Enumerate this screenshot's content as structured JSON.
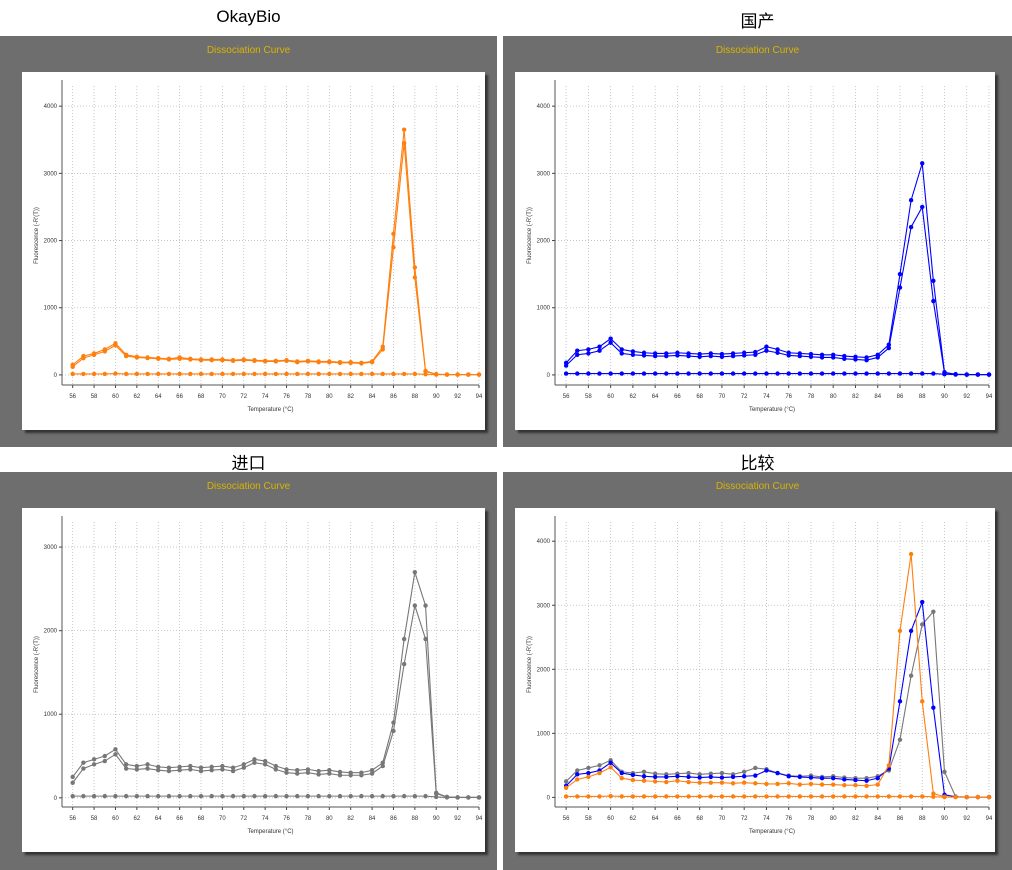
{
  "panel_titles": [
    "OkayBio",
    "国产",
    "进口",
    "比较"
  ],
  "chart_data": [
    {
      "type": "line",
      "title": "Dissociation Curve",
      "xlabel": "Temperature (°C)",
      "ylabel": "Fluorescence (-R'(T))",
      "xlim": [
        55,
        94
      ],
      "ylim": [
        -150,
        4300
      ],
      "xticks": [
        56,
        58,
        60,
        62,
        64,
        66,
        68,
        70,
        72,
        74,
        76,
        78,
        80,
        82,
        84,
        86,
        88,
        90,
        92,
        94
      ],
      "yticks": [
        0,
        1000,
        2000,
        3000,
        4000
      ],
      "grid": true,
      "x": [
        56,
        57,
        58,
        59,
        60,
        61,
        62,
        63,
        64,
        65,
        66,
        67,
        68,
        69,
        70,
        71,
        72,
        73,
        74,
        75,
        76,
        77,
        78,
        79,
        80,
        81,
        82,
        83,
        84,
        85,
        86,
        87,
        88,
        89,
        90,
        91,
        92,
        93,
        94
      ],
      "series": [
        {
          "color": "#ff7f0e",
          "values": [
            150,
            280,
            320,
            380,
            470,
            300,
            270,
            260,
            250,
            240,
            260,
            240,
            230,
            230,
            230,
            220,
            230,
            220,
            210,
            210,
            220,
            200,
            210,
            200,
            200,
            190,
            190,
            180,
            200,
            420,
            2100,
            3650,
            1600,
            60,
            10,
            5,
            5,
            5,
            5
          ]
        },
        {
          "color": "#ff7f0e",
          "values": [
            120,
            250,
            300,
            350,
            440,
            280,
            260,
            250,
            240,
            230,
            240,
            230,
            220,
            220,
            220,
            210,
            220,
            210,
            200,
            200,
            210,
            190,
            200,
            190,
            190,
            180,
            180,
            170,
            190,
            380,
            1900,
            3450,
            1450,
            50,
            10,
            5,
            5,
            5,
            5
          ]
        },
        {
          "color": "#ff7f0e",
          "values": [
            15,
            15,
            15,
            15,
            20,
            15,
            15,
            15,
            15,
            15,
            15,
            15,
            15,
            15,
            15,
            15,
            15,
            15,
            15,
            15,
            15,
            15,
            15,
            15,
            15,
            15,
            15,
            15,
            15,
            15,
            15,
            15,
            15,
            10,
            5,
            5,
            5,
            5,
            5
          ]
        }
      ]
    },
    {
      "type": "line",
      "title": "Dissociation Curve",
      "xlabel": "Temperature (°C)",
      "ylabel": "Fluorescence (-R'(T))",
      "xlim": [
        55,
        94
      ],
      "ylim": [
        -150,
        4300
      ],
      "xticks": [
        56,
        58,
        60,
        62,
        64,
        66,
        68,
        70,
        72,
        74,
        76,
        78,
        80,
        82,
        84,
        86,
        88,
        90,
        92,
        94
      ],
      "yticks": [
        0,
        1000,
        2000,
        3000,
        4000
      ],
      "grid": true,
      "x": [
        56,
        57,
        58,
        59,
        60,
        61,
        62,
        63,
        64,
        65,
        66,
        67,
        68,
        69,
        70,
        71,
        72,
        73,
        74,
        75,
        76,
        77,
        78,
        79,
        80,
        81,
        82,
        83,
        84,
        85,
        86,
        87,
        88,
        89,
        90,
        91,
        92,
        93,
        94
      ],
      "series": [
        {
          "color": "#0000ff",
          "values": [
            180,
            360,
            380,
            420,
            540,
            380,
            350,
            330,
            320,
            320,
            330,
            320,
            310,
            320,
            310,
            320,
            330,
            340,
            420,
            380,
            330,
            320,
            310,
            300,
            300,
            280,
            270,
            260,
            300,
            450,
            1500,
            2600,
            3150,
            1400,
            40,
            10,
            5,
            5,
            5
          ]
        },
        {
          "color": "#0000ff",
          "values": [
            140,
            300,
            320,
            360,
            480,
            320,
            300,
            290,
            280,
            280,
            290,
            280,
            270,
            280,
            270,
            280,
            290,
            300,
            360,
            330,
            290,
            280,
            270,
            260,
            260,
            240,
            230,
            220,
            260,
            400,
            1300,
            2200,
            2500,
            1100,
            30,
            10,
            5,
            5,
            5
          ]
        },
        {
          "color": "#0000ff",
          "values": [
            20,
            20,
            20,
            20,
            20,
            20,
            20,
            20,
            20,
            20,
            20,
            20,
            20,
            20,
            20,
            20,
            20,
            20,
            20,
            20,
            20,
            20,
            20,
            20,
            20,
            20,
            20,
            20,
            20,
            20,
            20,
            20,
            20,
            20,
            10,
            5,
            5,
            5,
            5
          ]
        }
      ]
    },
    {
      "type": "line",
      "title": "Dissociation Curve",
      "xlabel": "Temperature (°C)",
      "ylabel": "Fluorescence (-R'(T))",
      "xlim": [
        55,
        94
      ],
      "ylim": [
        -110,
        3300
      ],
      "xticks": [
        56,
        58,
        60,
        62,
        64,
        66,
        68,
        70,
        72,
        74,
        76,
        78,
        80,
        82,
        84,
        86,
        88,
        90,
        92,
        94
      ],
      "yticks": [
        0,
        1000,
        2000,
        3000
      ],
      "grid": true,
      "x": [
        56,
        57,
        58,
        59,
        60,
        61,
        62,
        63,
        64,
        65,
        66,
        67,
        68,
        69,
        70,
        71,
        72,
        73,
        74,
        75,
        76,
        77,
        78,
        79,
        80,
        81,
        82,
        83,
        84,
        85,
        86,
        87,
        88,
        89,
        90,
        91,
        92,
        93,
        94
      ],
      "series": [
        {
          "color": "#777777",
          "values": [
            250,
            420,
            460,
            500,
            580,
            400,
            380,
            400,
            370,
            360,
            370,
            380,
            360,
            370,
            380,
            360,
            400,
            460,
            440,
            380,
            340,
            330,
            340,
            320,
            330,
            310,
            300,
            300,
            330,
            420,
            900,
            1900,
            2700,
            2300,
            60,
            10,
            5,
            5,
            5
          ]
        },
        {
          "color": "#777777",
          "values": [
            180,
            350,
            400,
            440,
            520,
            350,
            340,
            350,
            330,
            320,
            330,
            340,
            320,
            330,
            340,
            320,
            360,
            420,
            400,
            340,
            300,
            290,
            300,
            280,
            290,
            270,
            270,
            270,
            290,
            380,
            800,
            1600,
            2300,
            1900,
            50,
            10,
            5,
            5,
            5
          ]
        },
        {
          "color": "#777777",
          "values": [
            20,
            20,
            20,
            20,
            20,
            20,
            20,
            20,
            20,
            20,
            20,
            20,
            20,
            20,
            20,
            20,
            20,
            20,
            20,
            20,
            20,
            20,
            20,
            20,
            20,
            20,
            20,
            20,
            20,
            20,
            20,
            20,
            20,
            20,
            10,
            5,
            5,
            5,
            5
          ]
        }
      ]
    },
    {
      "type": "line",
      "title": "Dissociation Curve",
      "xlabel": "Temperature (°C)",
      "ylabel": "Fluorescence (-R'(T))",
      "xlim": [
        55,
        94
      ],
      "ylim": [
        -150,
        4300
      ],
      "xticks": [
        56,
        58,
        60,
        62,
        64,
        66,
        68,
        70,
        72,
        74,
        76,
        78,
        80,
        82,
        84,
        86,
        88,
        90,
        92,
        94
      ],
      "yticks": [
        0,
        1000,
        2000,
        3000,
        4000
      ],
      "grid": true,
      "x": [
        56,
        57,
        58,
        59,
        60,
        61,
        62,
        63,
        64,
        65,
        66,
        67,
        68,
        69,
        70,
        71,
        72,
        73,
        74,
        75,
        76,
        77,
        78,
        79,
        80,
        81,
        82,
        83,
        84,
        85,
        86,
        87,
        88,
        89,
        90,
        91,
        92,
        93,
        94
      ],
      "series": [
        {
          "color": "#777777",
          "values": [
            250,
            420,
            460,
            500,
            580,
            400,
            380,
            400,
            370,
            360,
            370,
            380,
            360,
            370,
            380,
            360,
            400,
            460,
            440,
            380,
            340,
            330,
            340,
            320,
            330,
            310,
            300,
            300,
            330,
            420,
            900,
            1900,
            2700,
            2900,
            400,
            10,
            5,
            5,
            5
          ]
        },
        {
          "color": "#0000ff",
          "values": [
            180,
            360,
            380,
            420,
            540,
            380,
            350,
            330,
            320,
            320,
            330,
            320,
            310,
            320,
            310,
            320,
            330,
            340,
            420,
            380,
            330,
            320,
            310,
            300,
            300,
            280,
            270,
            260,
            300,
            450,
            1500,
            2600,
            3050,
            1400,
            40,
            10,
            5,
            5,
            5
          ]
        },
        {
          "color": "#ff7f0e",
          "values": [
            150,
            280,
            320,
            380,
            470,
            300,
            270,
            260,
            250,
            240,
            260,
            240,
            230,
            230,
            230,
            220,
            230,
            220,
            210,
            210,
            220,
            200,
            210,
            200,
            200,
            190,
            190,
            180,
            200,
            500,
            2600,
            3800,
            1500,
            60,
            10,
            5,
            5,
            5,
            5
          ]
        },
        {
          "color": "#ff7f0e",
          "values": [
            15,
            15,
            15,
            15,
            20,
            15,
            15,
            15,
            15,
            15,
            15,
            15,
            15,
            15,
            15,
            15,
            15,
            15,
            15,
            15,
            15,
            15,
            15,
            15,
            15,
            15,
            15,
            15,
            15,
            15,
            15,
            15,
            15,
            10,
            5,
            5,
            5,
            5,
            5
          ]
        }
      ]
    }
  ]
}
